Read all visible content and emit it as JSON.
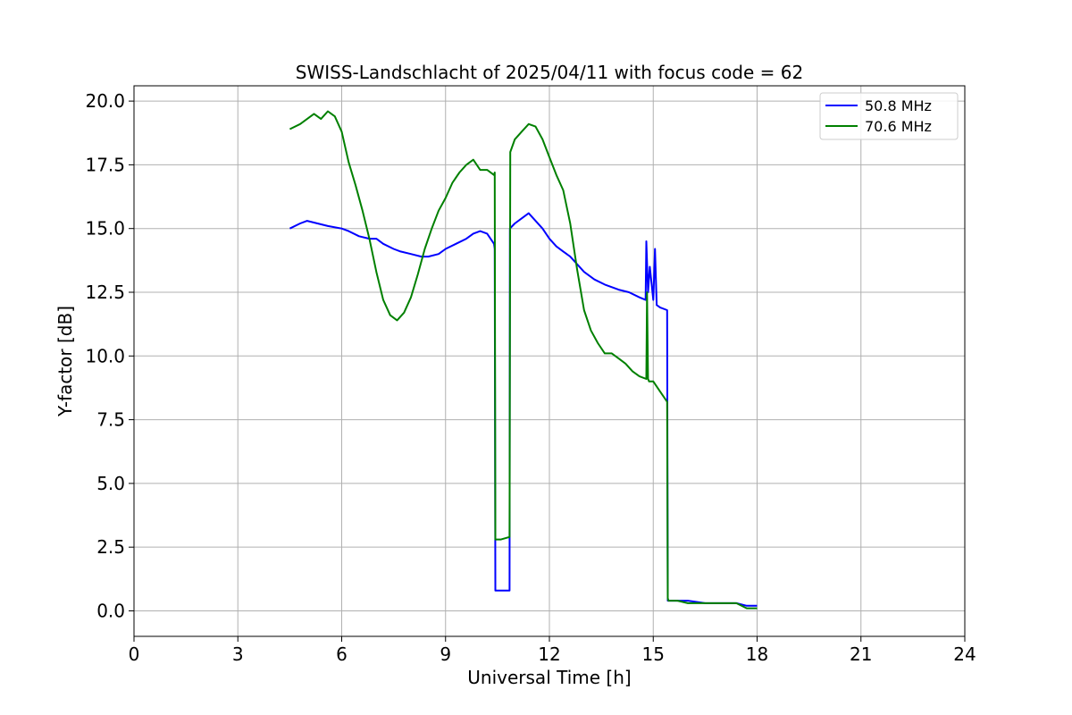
{
  "chart_data": {
    "type": "line",
    "title": "SWISS-Landschlacht of 2025/04/11 with focus code = 62",
    "xlabel": "Universal Time [h]",
    "ylabel": "Y-factor [dB]",
    "xlim": [
      0,
      24
    ],
    "ylim": [
      -1.0,
      20.6
    ],
    "xticks": [
      0,
      3,
      6,
      9,
      12,
      15,
      18,
      21,
      24
    ],
    "xtick_labels": [
      "0",
      "3",
      "6",
      "9",
      "12",
      "15",
      "18",
      "21",
      "24"
    ],
    "yticks": [
      0.0,
      2.5,
      5.0,
      7.5,
      10.0,
      12.5,
      15.0,
      17.5,
      20.0
    ],
    "ytick_labels": [
      "0.0",
      "2.5",
      "5.0",
      "7.5",
      "10.0",
      "12.5",
      "15.0",
      "17.5",
      "20.0"
    ],
    "grid": true,
    "legend_position": "top-right",
    "series": [
      {
        "name": "50.8 MHz",
        "label": "  50.8 MHz",
        "color": "#0000ff",
        "x": [
          4.5,
          4.8,
          5.0,
          5.3,
          5.6,
          6.0,
          6.2,
          6.5,
          6.8,
          7.0,
          7.2,
          7.5,
          7.7,
          8.0,
          8.3,
          8.5,
          8.8,
          9.0,
          9.3,
          9.6,
          9.8,
          10.0,
          10.2,
          10.4,
          10.42,
          10.44,
          10.6,
          10.85,
          10.86,
          11.0,
          11.2,
          11.4,
          11.6,
          11.8,
          12.0,
          12.2,
          12.4,
          12.6,
          12.8,
          13.0,
          13.3,
          13.6,
          14.0,
          14.3,
          14.6,
          14.78,
          14.8,
          14.85,
          14.9,
          15.0,
          15.05,
          15.1,
          15.2,
          15.4,
          15.42,
          15.44,
          15.7,
          16.0,
          16.5,
          17.0,
          17.4,
          17.7,
          18.0
        ],
        "y": [
          15.0,
          15.2,
          15.3,
          15.2,
          15.1,
          15.0,
          14.9,
          14.7,
          14.6,
          14.6,
          14.4,
          14.2,
          14.1,
          14.0,
          13.9,
          13.9,
          14.0,
          14.2,
          14.4,
          14.6,
          14.8,
          14.9,
          14.8,
          14.4,
          14.2,
          0.8,
          0.8,
          0.8,
          15.0,
          15.2,
          15.4,
          15.6,
          15.3,
          15.0,
          14.6,
          14.3,
          14.1,
          13.9,
          13.6,
          13.3,
          13.0,
          12.8,
          12.6,
          12.5,
          12.3,
          12.2,
          14.5,
          12.5,
          13.5,
          12.2,
          14.2,
          12.0,
          11.9,
          11.8,
          0.4,
          0.4,
          0.4,
          0.4,
          0.3,
          0.3,
          0.3,
          0.2,
          0.2
        ]
      },
      {
        "name": "70.6 MHz",
        "label": "  70.6 MHz",
        "color": "#008000",
        "x": [
          4.5,
          4.8,
          5.0,
          5.2,
          5.4,
          5.6,
          5.8,
          6.0,
          6.2,
          6.4,
          6.6,
          6.8,
          7.0,
          7.2,
          7.4,
          7.6,
          7.8,
          8.0,
          8.2,
          8.4,
          8.6,
          8.8,
          9.0,
          9.2,
          9.4,
          9.6,
          9.8,
          10.0,
          10.2,
          10.4,
          10.42,
          10.44,
          10.6,
          10.85,
          10.87,
          11.0,
          11.2,
          11.4,
          11.6,
          11.8,
          12.0,
          12.2,
          12.4,
          12.6,
          12.8,
          13.0,
          13.2,
          13.4,
          13.6,
          13.8,
          14.0,
          14.2,
          14.4,
          14.6,
          14.8,
          14.82,
          14.85,
          14.88,
          15.0,
          15.2,
          15.4,
          15.42,
          15.44,
          15.7,
          16.0,
          16.5,
          17.0,
          17.4,
          17.7,
          18.0
        ],
        "y": [
          18.9,
          19.1,
          19.3,
          19.5,
          19.3,
          19.6,
          19.4,
          18.8,
          17.6,
          16.7,
          15.7,
          14.6,
          13.3,
          12.2,
          11.6,
          11.4,
          11.7,
          12.3,
          13.2,
          14.2,
          15.0,
          15.7,
          16.2,
          16.8,
          17.2,
          17.5,
          17.7,
          17.3,
          17.3,
          17.1,
          17.2,
          2.8,
          2.8,
          2.9,
          18.0,
          18.5,
          18.8,
          19.1,
          19.0,
          18.5,
          17.8,
          17.1,
          16.5,
          15.2,
          13.4,
          11.8,
          11.0,
          10.5,
          10.1,
          10.1,
          9.9,
          9.7,
          9.4,
          9.2,
          9.1,
          12.5,
          9.1,
          9.0,
          9.0,
          8.6,
          8.2,
          0.5,
          0.4,
          0.4,
          0.3,
          0.3,
          0.3,
          0.3,
          0.1,
          0.1
        ]
      }
    ]
  }
}
